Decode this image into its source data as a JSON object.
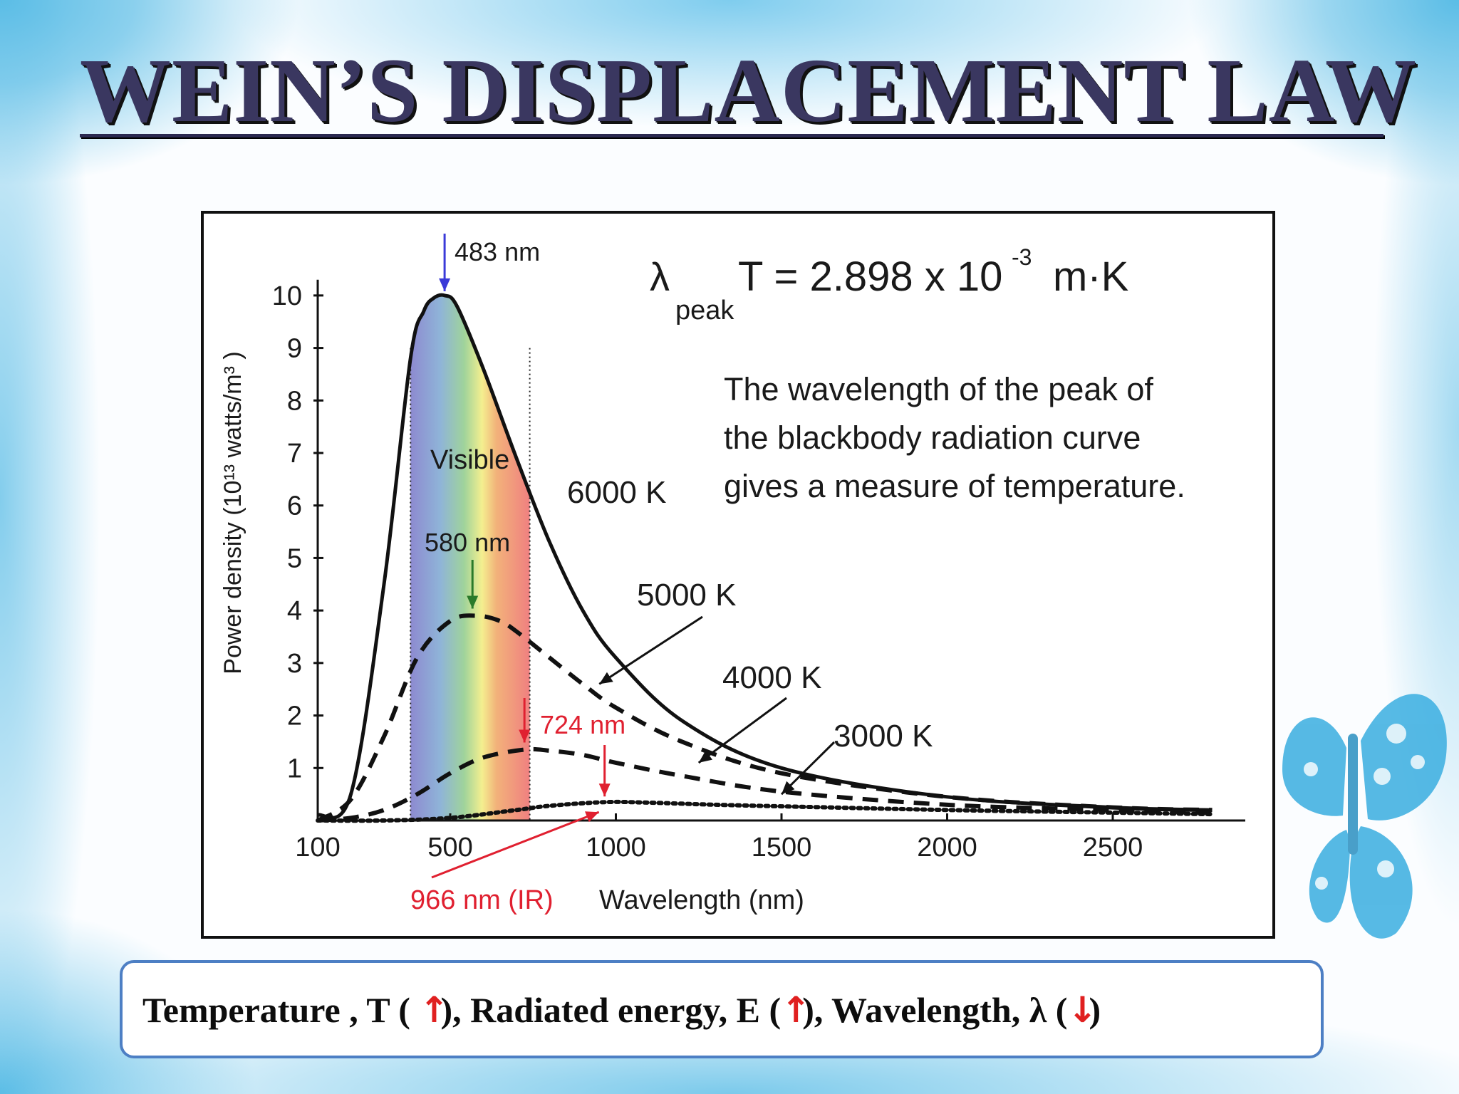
{
  "slide": {
    "title": "WEIN’S DISPLACEMENT LAW",
    "colors": {
      "title": "#3a3760",
      "background_accent": "#5bbde6",
      "box_border": "#4d7fc4",
      "arrow_red": "#e02020"
    }
  },
  "chart_data": {
    "type": "line",
    "xlabel": "Wavelength (nm)",
    "ylabel": "Power density (10¹³ watts/m³ )",
    "x_ticks": [
      100,
      500,
      1000,
      1500,
      2000,
      2500
    ],
    "y_ticks": [
      1,
      2,
      3,
      4,
      5,
      6,
      7,
      8,
      9,
      10
    ],
    "xlim": [
      100,
      2900
    ],
    "ylim": [
      0,
      10.5
    ],
    "series": [
      {
        "name": "6000 K",
        "style": "solid",
        "peak_wavelength_nm": 483,
        "peak_value": 10.0,
        "x": [
          100,
          200,
          300,
          380,
          420,
          450,
          483,
          520,
          600,
          700,
          800,
          900,
          1000,
          1200,
          1500,
          2000,
          2500,
          2800
        ],
        "y": [
          0.1,
          0.5,
          4.5,
          8.8,
          9.7,
          9.95,
          10.0,
          9.8,
          8.6,
          6.9,
          5.3,
          4.0,
          3.1,
          1.9,
          1.0,
          0.45,
          0.25,
          0.2
        ]
      },
      {
        "name": "5000 K",
        "style": "dashed",
        "peak_wavelength_nm": 580,
        "peak_value": 3.9,
        "x": [
          100,
          200,
          300,
          400,
          500,
          580,
          650,
          700,
          800,
          900,
          1000,
          1200,
          1500,
          2000,
          2500,
          2800
        ],
        "y": [
          0.0,
          0.4,
          1.6,
          3.1,
          3.8,
          3.9,
          3.8,
          3.6,
          3.1,
          2.6,
          2.15,
          1.5,
          0.9,
          0.45,
          0.25,
          0.2
        ]
      },
      {
        "name": "4000 K",
        "style": "dashed",
        "peak_wavelength_nm": 724,
        "peak_value": 1.35,
        "x": [
          100,
          200,
          300,
          400,
          500,
          600,
          724,
          800,
          900,
          1000,
          1200,
          1500,
          2000,
          2500,
          2800
        ],
        "y": [
          0.0,
          0.05,
          0.2,
          0.5,
          0.9,
          1.2,
          1.35,
          1.33,
          1.25,
          1.1,
          0.85,
          0.55,
          0.3,
          0.2,
          0.15
        ]
      },
      {
        "name": "3000 K",
        "style": "dotted",
        "peak_wavelength_nm": 966,
        "peak_value": 0.35,
        "x": [
          100,
          300,
          500,
          700,
          800,
          966,
          1100,
          1300,
          1500,
          2000,
          2500,
          2800
        ],
        "y": [
          0.0,
          0.0,
          0.05,
          0.2,
          0.28,
          0.35,
          0.34,
          0.3,
          0.27,
          0.2,
          0.15,
          0.12
        ]
      }
    ],
    "visible_band_nm": [
      380,
      740
    ],
    "annotations": {
      "peak_6000": "483 nm",
      "peak_5000": "580 nm",
      "peak_4000": "724 nm",
      "peak_3000": "966 nm (IR)",
      "visible": "Visible",
      "formula_lambda": "λ",
      "formula_peak": "peak",
      "formula_main": "T = 2.898  x 10",
      "formula_exp": "-3",
      "formula_unit": "m·K",
      "description_lines": [
        "The wavelength of the peak of",
        "the blackbody radiation curve",
        "gives a measure of temperature."
      ]
    }
  },
  "summary": {
    "part1": "Temperature , T (",
    "part1_end": "),",
    "part2": "Radiated energy, E (",
    "part2_end": "),",
    "part3": "Wavelength,  λ  (",
    "part3_end": ")",
    "arrow_up": "↑",
    "arrow_down": "↓"
  }
}
